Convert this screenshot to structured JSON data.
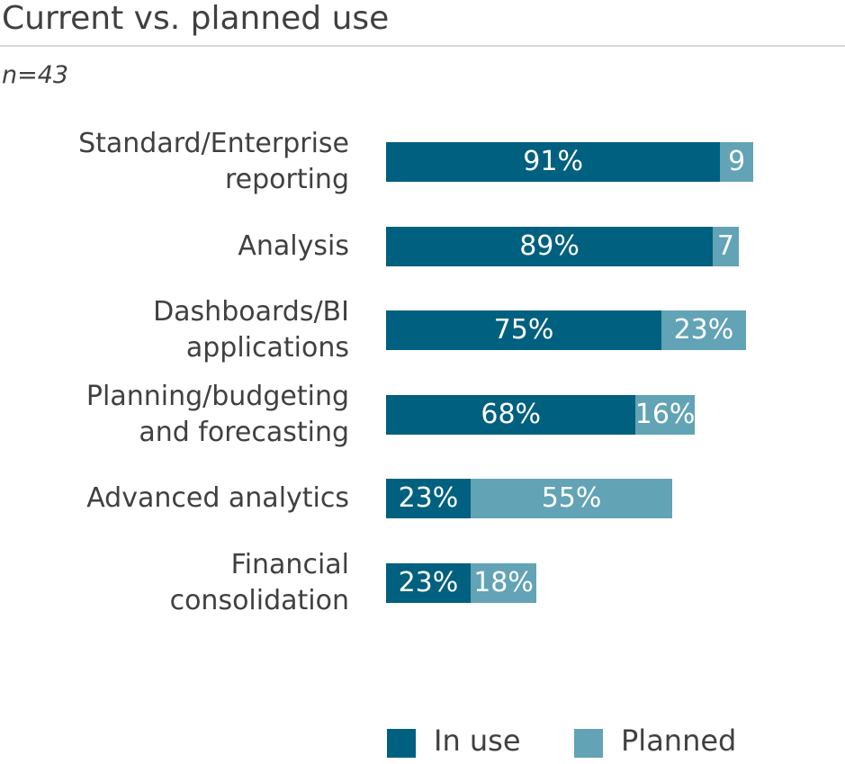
{
  "chart_data": {
    "type": "stacked-bar-horizontal",
    "title": "Current vs. planned use",
    "subtitle": "n=43",
    "categories": [
      "Standard/Enterprise\nreporting",
      "Analysis",
      "Dashboards/BI\napplications",
      "Planning/budgeting\nand forecasting",
      "Advanced analytics",
      "Financial\nconsolidation"
    ],
    "series": [
      {
        "name": "In use",
        "color": "#00607f",
        "values": [
          91,
          89,
          75,
          68,
          23,
          23
        ],
        "value_labels": [
          "91%",
          "89%",
          "75%",
          "68%",
          "23%",
          "23%"
        ]
      },
      {
        "name": "Planned",
        "color": "#62a3b6",
        "values": [
          9,
          7,
          23,
          16,
          55,
          18
        ],
        "value_labels": [
          "9",
          "7",
          "23%",
          "16%",
          "55%",
          "18%"
        ]
      }
    ]
  }
}
